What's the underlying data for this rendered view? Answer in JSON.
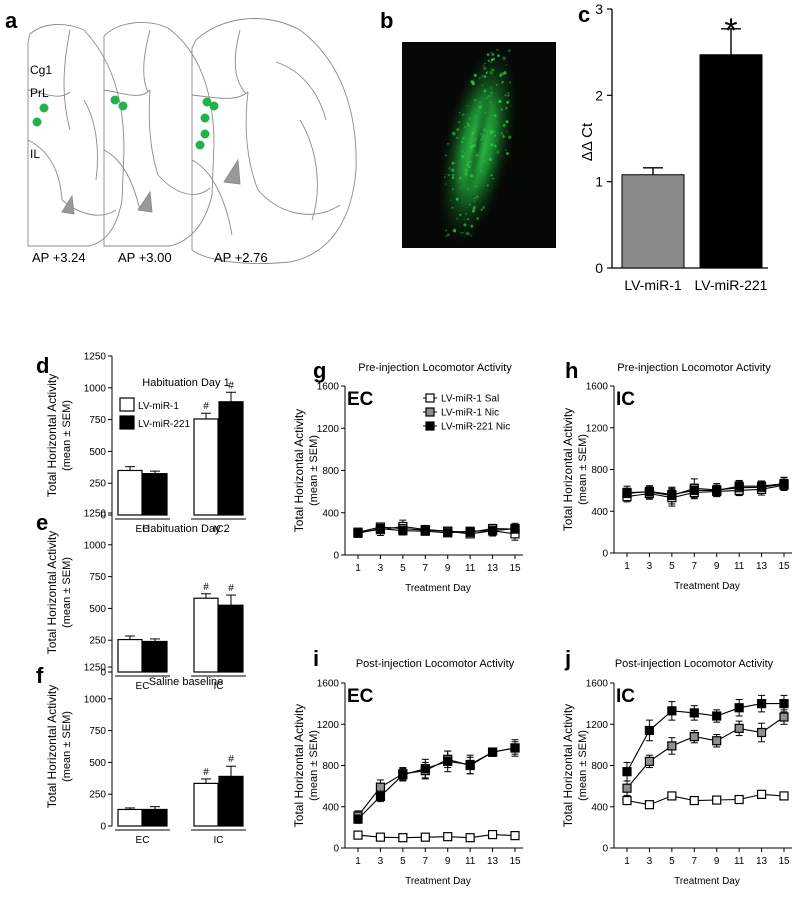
{
  "figure": {
    "panel_labels": [
      "a",
      "b",
      "c",
      "d",
      "e",
      "f",
      "g",
      "h",
      "i",
      "j"
    ],
    "atlas": {
      "regions": [
        "Cg1",
        "PrL",
        "IL"
      ],
      "sections": [
        "AP +3.24",
        "AP +3.00",
        "AP +2.76"
      ],
      "dot_color": "#22b24c"
    },
    "micrograph": {
      "fluorescence_color": "#2fcf4a",
      "background": "#060806"
    }
  },
  "chart_data": [
    {
      "id": "c",
      "type": "bar",
      "categories": [
        "LV-miR-1",
        "LV-miR-221"
      ],
      "values": [
        1.08,
        2.47
      ],
      "errors": [
        0.08,
        0.3
      ],
      "colors": [
        "#8a8a8a",
        "#000000"
      ],
      "ylabel": "ΔΔ Ct",
      "ylim": [
        0,
        3
      ],
      "yticks": [
        "0",
        "1",
        "2",
        "3"
      ],
      "annotation": "*"
    },
    {
      "id": "d",
      "type": "bar",
      "title": "Habituation Day 1",
      "groups": [
        "EC",
        "IC"
      ],
      "legend": [
        "LV-miR-1",
        "LV-miR-221"
      ],
      "series": [
        {
          "name": "LV-miR-1",
          "values": [
            350,
            755
          ],
          "errors": [
            30,
            45
          ]
        },
        {
          "name": "LV-miR-221",
          "values": [
            325,
            890
          ],
          "errors": [
            20,
            75
          ]
        }
      ],
      "marks": [
        [
          "",
          ""
        ],
        [
          "#",
          "#"
        ]
      ],
      "ylabel": "Total Horizontal Activity",
      "ylabel2": "(mean ± SEM)",
      "ylim": [
        0,
        1250
      ],
      "yticks": [
        "0",
        "250",
        "500",
        "750",
        "1000",
        "1250"
      ]
    },
    {
      "id": "e",
      "type": "bar",
      "title": "Habituation Day 2",
      "groups": [
        "EC",
        "IC"
      ],
      "series": [
        {
          "name": "LV-miR-1",
          "values": [
            255,
            580
          ],
          "errors": [
            28,
            35
          ]
        },
        {
          "name": "LV-miR-221",
          "values": [
            240,
            525
          ],
          "errors": [
            20,
            80
          ]
        }
      ],
      "marks": [
        [
          "",
          ""
        ],
        [
          "#",
          "#"
        ]
      ],
      "ylabel": "Total Horizontal Activity",
      "ylabel2": "(mean ± SEM)",
      "ylim": [
        0,
        1250
      ],
      "yticks": [
        "0",
        "250",
        "500",
        "750",
        "1000",
        "1250"
      ]
    },
    {
      "id": "f",
      "type": "bar",
      "title": "Saline baseline",
      "groups": [
        "EC",
        "IC"
      ],
      "series": [
        {
          "name": "LV-miR-1",
          "values": [
            130,
            335
          ],
          "errors": [
            12,
            35
          ]
        },
        {
          "name": "LV-miR-221",
          "values": [
            130,
            390
          ],
          "errors": [
            22,
            80
          ]
        }
      ],
      "marks": [
        [
          "",
          ""
        ],
        [
          "#",
          "#"
        ]
      ],
      "ylabel": "Total Horizontal Activity",
      "ylabel2": "(mean ± SEM)",
      "ylim": [
        0,
        1250
      ],
      "yticks": [
        "0",
        "250",
        "500",
        "750",
        "1000",
        "1250"
      ]
    },
    {
      "id": "g",
      "type": "line",
      "title": "Pre-injection Locomotor Activity",
      "tag": "EC",
      "x": [
        1,
        3,
        5,
        7,
        9,
        11,
        13,
        15
      ],
      "xlabel": "Treatment Day",
      "ylabel": "Total Horizontal Activity",
      "ylabel2": "(mean ± SEM)",
      "ylim": [
        0,
        1600
      ],
      "yticks": [
        "0",
        "400",
        "800",
        "1200",
        "1600"
      ],
      "xticks": [
        "1",
        "3",
        "5",
        "7",
        "9",
        "11",
        "13",
        "15"
      ],
      "legend": [
        "LV-miR-1 Sal",
        "LV-miR-1 Nic",
        "LV-miR-221 Nic"
      ],
      "series": [
        {
          "name": "LV-miR-1 Sal",
          "fill": "#ffffff",
          "values": [
            215,
            240,
            270,
            240,
            225,
            200,
            230,
            200
          ],
          "errors": [
            15,
            55,
            60,
            40,
            40,
            35,
            50,
            60
          ]
        },
        {
          "name": "LV-miR-1 Nic",
          "fill": "#8f8f8f",
          "values": [
            215,
            265,
            250,
            235,
            225,
            215,
            250,
            245
          ],
          "errors": [
            15,
            35,
            40,
            35,
            30,
            30,
            40,
            40
          ]
        },
        {
          "name": "LV-miR-221 Nic",
          "fill": "#000000",
          "values": [
            205,
            250,
            230,
            225,
            210,
            225,
            230,
            250
          ],
          "errors": [
            15,
            35,
            40,
            30,
            30,
            30,
            40,
            50
          ]
        }
      ]
    },
    {
      "id": "h",
      "type": "line",
      "title": "Pre-injection Locomotor Activity",
      "tag": "IC",
      "x": [
        1,
        3,
        5,
        7,
        9,
        11,
        13,
        15
      ],
      "xlabel": "Treatment Day",
      "ylabel": "Total Horizontal Activity",
      "ylabel2": "(mean ± SEM)",
      "ylim": [
        0,
        1600
      ],
      "yticks": [
        "0",
        "400",
        "800",
        "1200",
        "1600"
      ],
      "xticks": [
        "1",
        "3",
        "5",
        "7",
        "9",
        "11",
        "13",
        "15"
      ],
      "series": [
        {
          "name": "LV-miR-1 Sal",
          "fill": "#ffffff",
          "values": [
            540,
            570,
            530,
            580,
            590,
            600,
            610,
            650
          ],
          "errors": [
            50,
            55,
            80,
            60,
            50,
            50,
            55,
            50
          ]
        },
        {
          "name": "LV-miR-1 Nic",
          "fill": "#8f8f8f",
          "values": [
            580,
            585,
            550,
            620,
            605,
            625,
            630,
            660
          ],
          "errors": [
            60,
            60,
            80,
            90,
            60,
            70,
            60,
            60
          ]
        },
        {
          "name": "LV-miR-221 Nic",
          "fill": "#000000",
          "values": [
            570,
            590,
            560,
            600,
            600,
            640,
            640,
            665
          ],
          "errors": [
            50,
            50,
            60,
            60,
            50,
            50,
            50,
            60
          ]
        }
      ]
    },
    {
      "id": "i",
      "type": "line",
      "title": "Post-injection Locomotor Activity",
      "tag": "EC",
      "x": [
        1,
        3,
        5,
        7,
        9,
        11,
        13,
        15
      ],
      "xlabel": "Treatment Day",
      "ylabel": "Total Horizontal Activity",
      "ylabel2": "(mean ± SEM)",
      "ylim": [
        0,
        1600
      ],
      "yticks": [
        "0",
        "400",
        "800",
        "1200",
        "1600"
      ],
      "xticks": [
        "1",
        "3",
        "5",
        "7",
        "9",
        "11",
        "13",
        "15"
      ],
      "series": [
        {
          "name": "LV-miR-1 Sal",
          "fill": "#ffffff",
          "values": [
            125,
            105,
            100,
            105,
            110,
            100,
            130,
            120
          ],
          "errors": [
            10,
            10,
            10,
            10,
            10,
            10,
            15,
            10
          ]
        },
        {
          "name": "LV-miR-1 Nic",
          "fill": "#8f8f8f",
          "values": [
            310,
            590,
            720,
            750,
            860,
            800,
            930,
            970
          ],
          "errors": [
            50,
            70,
            60,
            80,
            80,
            80,
            40,
            60
          ]
        },
        {
          "name": "LV-miR-221 Nic",
          "fill": "#000000",
          "values": [
            280,
            500,
            710,
            770,
            840,
            810,
            930,
            970
          ],
          "errors": [
            40,
            50,
            60,
            90,
            100,
            90,
            40,
            80
          ]
        }
      ]
    },
    {
      "id": "j",
      "type": "line",
      "title": "Post-injection Locomotor Activity",
      "tag": "IC",
      "x": [
        1,
        3,
        5,
        7,
        9,
        11,
        13,
        15
      ],
      "xlabel": "Treatment Day",
      "ylabel": "Total Horizontal Activity",
      "ylabel2": "(mean ± SEM)",
      "ylim": [
        0,
        1600
      ],
      "yticks": [
        "0",
        "400",
        "800",
        "1200",
        "1600"
      ],
      "xticks": [
        "1",
        "3",
        "5",
        "7",
        "9",
        "11",
        "13",
        "15"
      ],
      "series": [
        {
          "name": "LV-miR-1 Sal",
          "fill": "#ffffff",
          "values": [
            460,
            420,
            505,
            460,
            465,
            470,
            520,
            505
          ],
          "errors": [
            30,
            25,
            25,
            30,
            20,
            20,
            30,
            20
          ]
        },
        {
          "name": "LV-miR-1 Nic",
          "fill": "#8f8f8f",
          "values": [
            580,
            840,
            990,
            1080,
            1040,
            1160,
            1120,
            1270
          ],
          "errors": [
            70,
            60,
            80,
            60,
            60,
            70,
            90,
            70
          ]
        },
        {
          "name": "LV-miR-221 Nic",
          "fill": "#000000",
          "values": [
            740,
            1140,
            1330,
            1310,
            1280,
            1360,
            1400,
            1400
          ],
          "errors": [
            90,
            100,
            90,
            70,
            60,
            80,
            80,
            80
          ]
        }
      ]
    }
  ]
}
